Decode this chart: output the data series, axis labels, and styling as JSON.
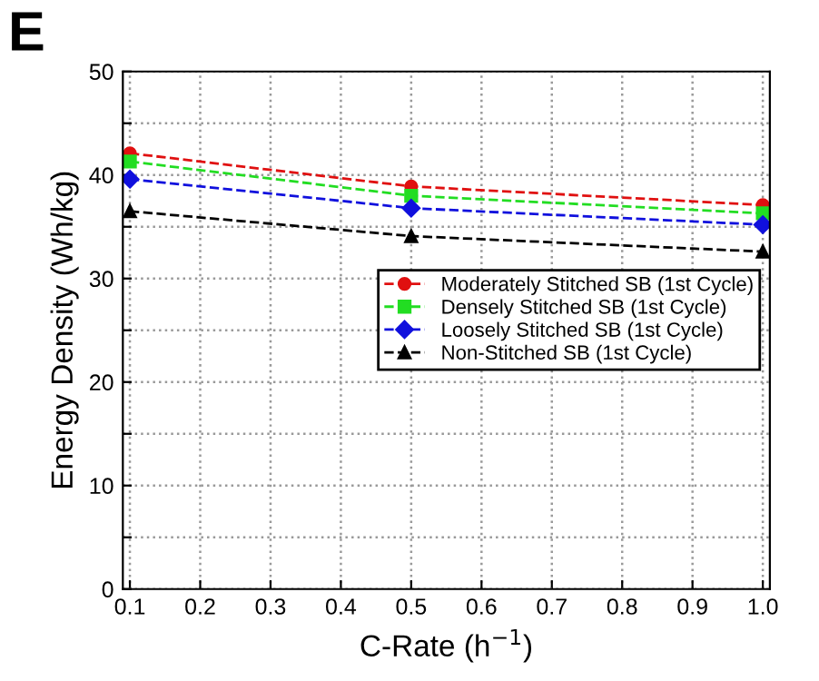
{
  "chart_data": {
    "type": "line",
    "xlabel": "C-Rate (h$^{−1}$)",
    "ylabel": "Energy Density (Wh/kg)",
    "annotations": [
      "E"
    ],
    "x": [
      0.1,
      0.5,
      1.0
    ],
    "series": [
      {
        "name": "Moderately Stitched SB (1st Cycle)",
        "color": "#e01010",
        "marker": "circle",
        "values": [
          42.1,
          38.9,
          37.1
        ]
      },
      {
        "name": "Densely Stitched SB (1st Cycle)",
        "color": "#22dd22",
        "marker": "square",
        "values": [
          41.3,
          38.0,
          36.3
        ]
      },
      {
        "name": "Loosely Stitched SB (1st Cycle)",
        "color": "#1010dd",
        "marker": "diamond",
        "values": [
          39.6,
          36.8,
          35.2
        ]
      },
      {
        "name": "Non-Stitched SB (1st Cycle)",
        "color": "#000000",
        "marker": "triangle",
        "values": [
          36.5,
          34.1,
          32.6
        ]
      }
    ],
    "line_style": "dashed",
    "grid": true,
    "legend": "center right",
    "xlim": [
      0.09,
      1.01
    ],
    "xticks": [
      0.1,
      0.2,
      0.3,
      0.4,
      0.5,
      0.6,
      0.7,
      0.8,
      0.9,
      {
        "value": 1.0,
        "label": "1.0"
      }
    ],
    "ylim": [
      0,
      50
    ],
    "yticks": [
      0,
      {
        "value": 5,
        "label": null
      },
      10,
      {
        "value": 15,
        "label": null
      },
      20,
      {
        "value": 25,
        "label": null
      },
      30,
      {
        "value": 35,
        "label": null
      },
      40,
      {
        "value": 45,
        "label": null
      },
      50
    ]
  }
}
